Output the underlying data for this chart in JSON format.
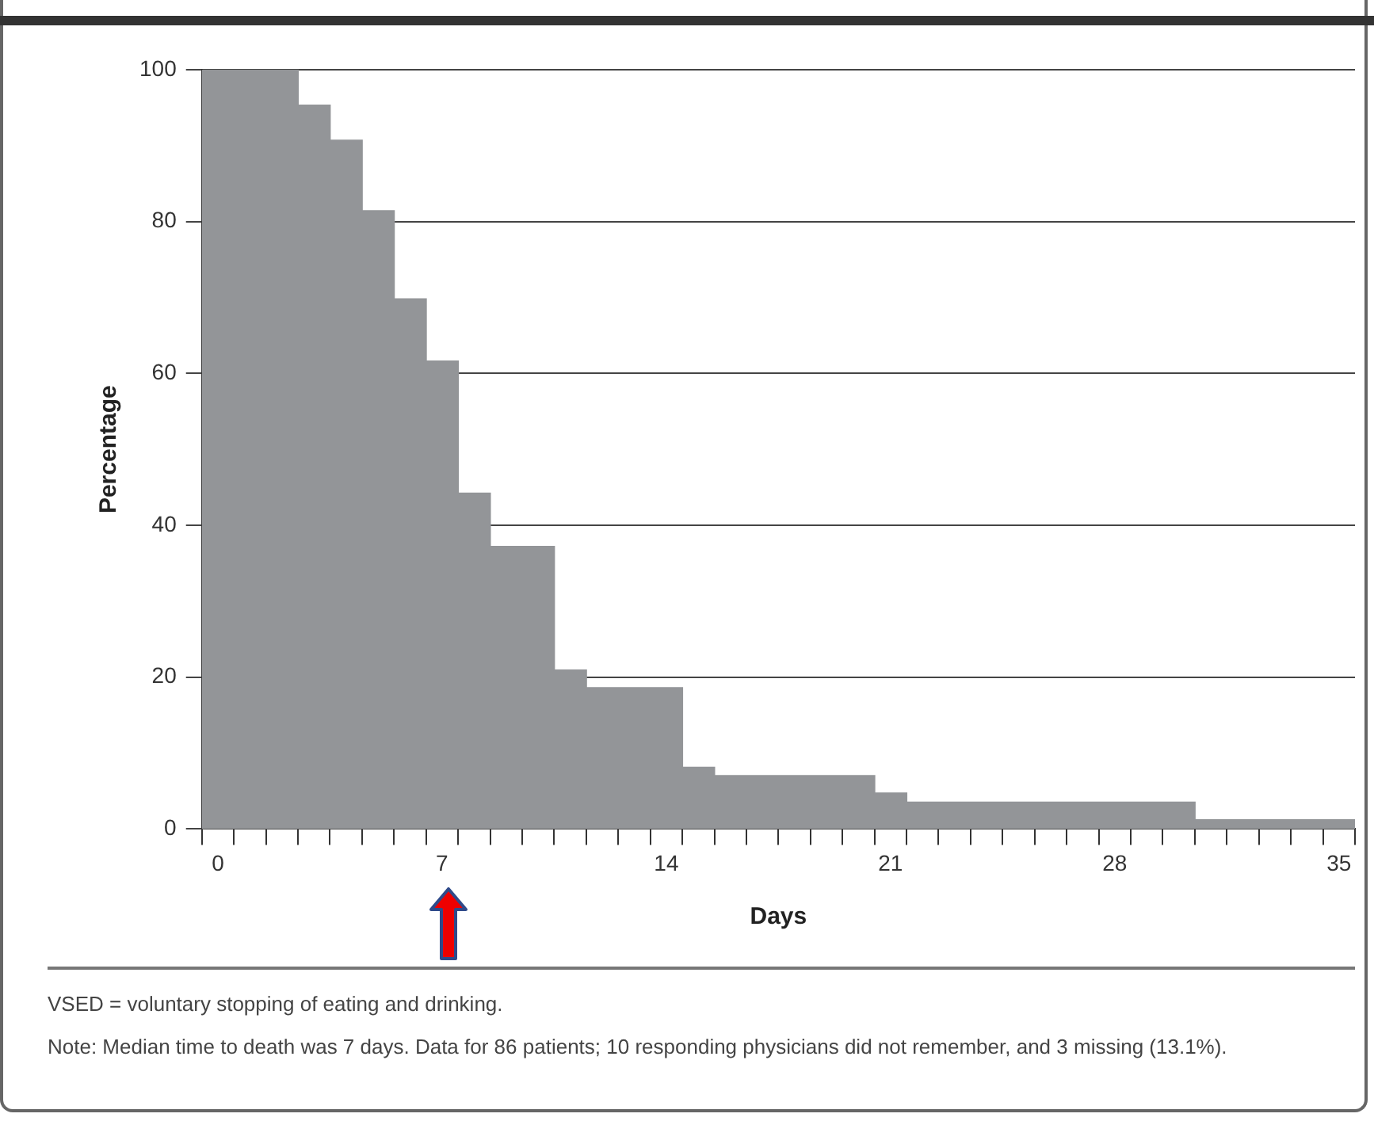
{
  "chart_data": {
    "type": "area",
    "xlabel": "Days",
    "ylabel": "Percentage",
    "x": [
      0,
      3,
      3,
      4,
      4,
      5,
      5,
      6,
      6,
      7,
      7,
      8,
      8,
      9,
      9,
      11,
      11,
      12,
      12,
      15,
      15,
      16,
      16,
      21,
      21,
      22,
      22,
      31,
      31,
      36
    ],
    "values": [
      100,
      100,
      95.3,
      95.3,
      90.7,
      90.7,
      81.4,
      81.4,
      69.8,
      69.8,
      61.6,
      61.6,
      44.2,
      44.2,
      37.2,
      37.2,
      20.9,
      20.9,
      18.6,
      18.6,
      8.1,
      8.1,
      7.0,
      7.0,
      4.7,
      4.7,
      3.5,
      3.5,
      1.2,
      1.2
    ],
    "color": "#939598",
    "xlim": [
      0,
      36
    ],
    "xticks": [
      {
        "value": 0,
        "label": null
      },
      {
        "value": 0.5,
        "label": "0"
      },
      {
        "value": 1,
        "label": null
      },
      {
        "value": 2,
        "label": null
      },
      {
        "value": 3,
        "label": null
      },
      {
        "value": 4,
        "label": null
      },
      {
        "value": 5,
        "label": null
      },
      {
        "value": 6,
        "label": null
      },
      {
        "value": 7,
        "label": null
      },
      {
        "value": 7.5,
        "label": "7"
      },
      {
        "value": 8,
        "label": null
      },
      {
        "value": 9,
        "label": null
      },
      {
        "value": 10,
        "label": null
      },
      {
        "value": 11,
        "label": null
      },
      {
        "value": 12,
        "label": null
      },
      {
        "value": 13,
        "label": null
      },
      {
        "value": 14,
        "label": null
      },
      {
        "value": 14.5,
        "label": "14"
      },
      {
        "value": 15,
        "label": null
      },
      {
        "value": 16,
        "label": null
      },
      {
        "value": 17,
        "label": null
      },
      {
        "value": 18,
        "label": null
      },
      {
        "value": 19,
        "label": null
      },
      {
        "value": 20,
        "label": null
      },
      {
        "value": 21,
        "label": null
      },
      {
        "value": 21.5,
        "label": "21"
      },
      {
        "value": 22,
        "label": null
      },
      {
        "value": 23,
        "label": null
      },
      {
        "value": 24,
        "label": null
      },
      {
        "value": 25,
        "label": null
      },
      {
        "value": 26,
        "label": null
      },
      {
        "value": 27,
        "label": null
      },
      {
        "value": 28,
        "label": null
      },
      {
        "value": 28.5,
        "label": "28"
      },
      {
        "value": 29,
        "label": null
      },
      {
        "value": 30,
        "label": null
      },
      {
        "value": 31,
        "label": null
      },
      {
        "value": 32,
        "label": null
      },
      {
        "value": 33,
        "label": null
      },
      {
        "value": 34,
        "label": null
      },
      {
        "value": 35,
        "label": null
      },
      {
        "value": 35.5,
        "label": "35"
      },
      {
        "value": 36,
        "label": null
      }
    ],
    "ylim": [
      0,
      100
    ],
    "yticks": [
      0,
      20,
      40,
      60,
      80,
      100
    ],
    "grid": "y",
    "legend": false,
    "annotations": [
      "VSED = voluntary stopping of eating and drinking.",
      "Note: Median time to death was 7 days. Data for 86 patients; 10 responding physicians did not remember, and 3 missing (13.1%)."
    ]
  }
}
